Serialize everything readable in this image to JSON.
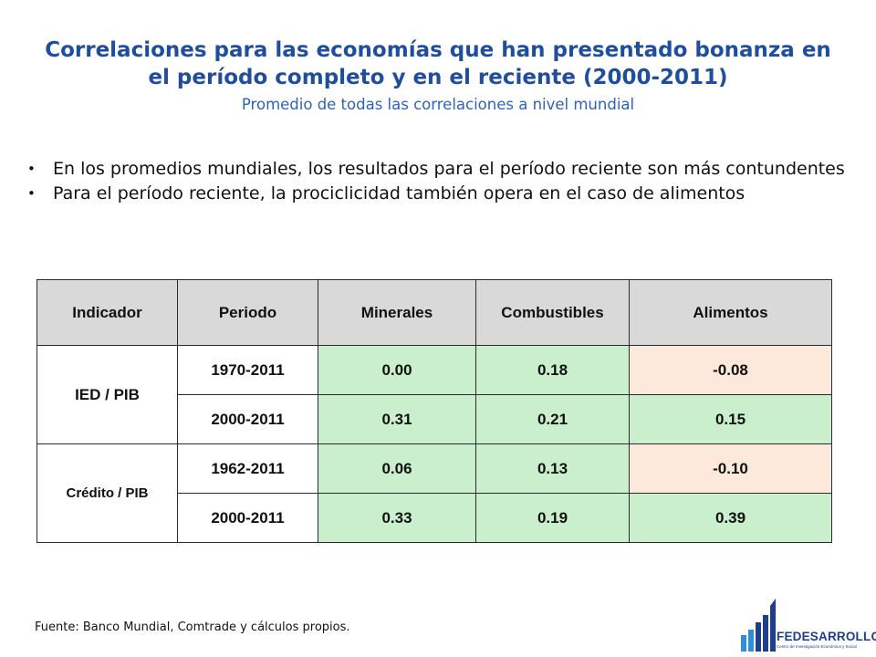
{
  "header": {
    "title_line1": "Correlaciones para las economías que han presentado bonanza en",
    "title_line2": "el período completo y en el reciente (2000-2011)",
    "subtitle": "Promedio de todas las correlaciones a nivel mundial"
  },
  "bullets": [
    "En los promedios mundiales, los resultados para el período reciente son más contundentes",
    "Para el período reciente, la prociclicidad también opera en el caso de alimentos"
  ],
  "table": {
    "headers": [
      "Indicador",
      "Periodo",
      "Minerales",
      "Combustibles",
      "Alimentos"
    ],
    "groups": [
      {
        "indicator": "IED / PIB",
        "rows": [
          {
            "period": "1970-2011",
            "minerales": "0.00",
            "combustibles": "0.18",
            "alimentos": "-0.08"
          },
          {
            "period": "2000-2011",
            "minerales": "0.31",
            "combustibles": "0.21",
            "alimentos": "0.15"
          }
        ]
      },
      {
        "indicator": "Crédito / PIB",
        "rows": [
          {
            "period": "1962-2011",
            "minerales": "0.06",
            "combustibles": "0.13",
            "alimentos": "-0.10"
          },
          {
            "period": "2000-2011",
            "minerales": "0.33",
            "combustibles": "0.19",
            "alimentos": "0.39"
          }
        ]
      }
    ],
    "colors": {
      "positive": "#c9efcc",
      "negative": "#fce9db",
      "header": "#d9d9d9"
    }
  },
  "footer": {
    "source": "Fuente: Banco Mundial, Comtrade y cálculos propios."
  },
  "logo": {
    "name": "FEDESARROLLO",
    "tagline": "Centro de Investigación Económica y Social",
    "color": "#1f3f8a",
    "accent": "#2e8fd6"
  }
}
